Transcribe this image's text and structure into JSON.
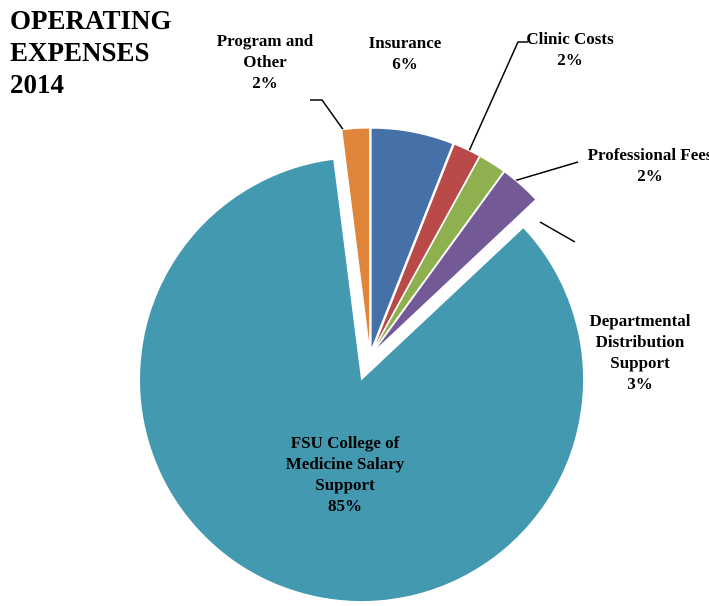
{
  "chart_data": {
    "type": "pie",
    "title": "OPERATING EXPENSES 2014",
    "categories": [
      "Insurance",
      "Clinic Costs",
      "Professional Fees",
      "Departmental Distribution Support",
      "FSU College of Medicine Salary Support",
      "Program and Other"
    ],
    "values": [
      6,
      2,
      2,
      3,
      85,
      2
    ],
    "value_labels": [
      "6%",
      "2%",
      "2%",
      "3%",
      "85%",
      "2%"
    ],
    "colors": [
      "#4570a8",
      "#b94a48",
      "#8fb04f",
      "#735a97",
      "#4299b0",
      "#e0853a"
    ]
  }
}
